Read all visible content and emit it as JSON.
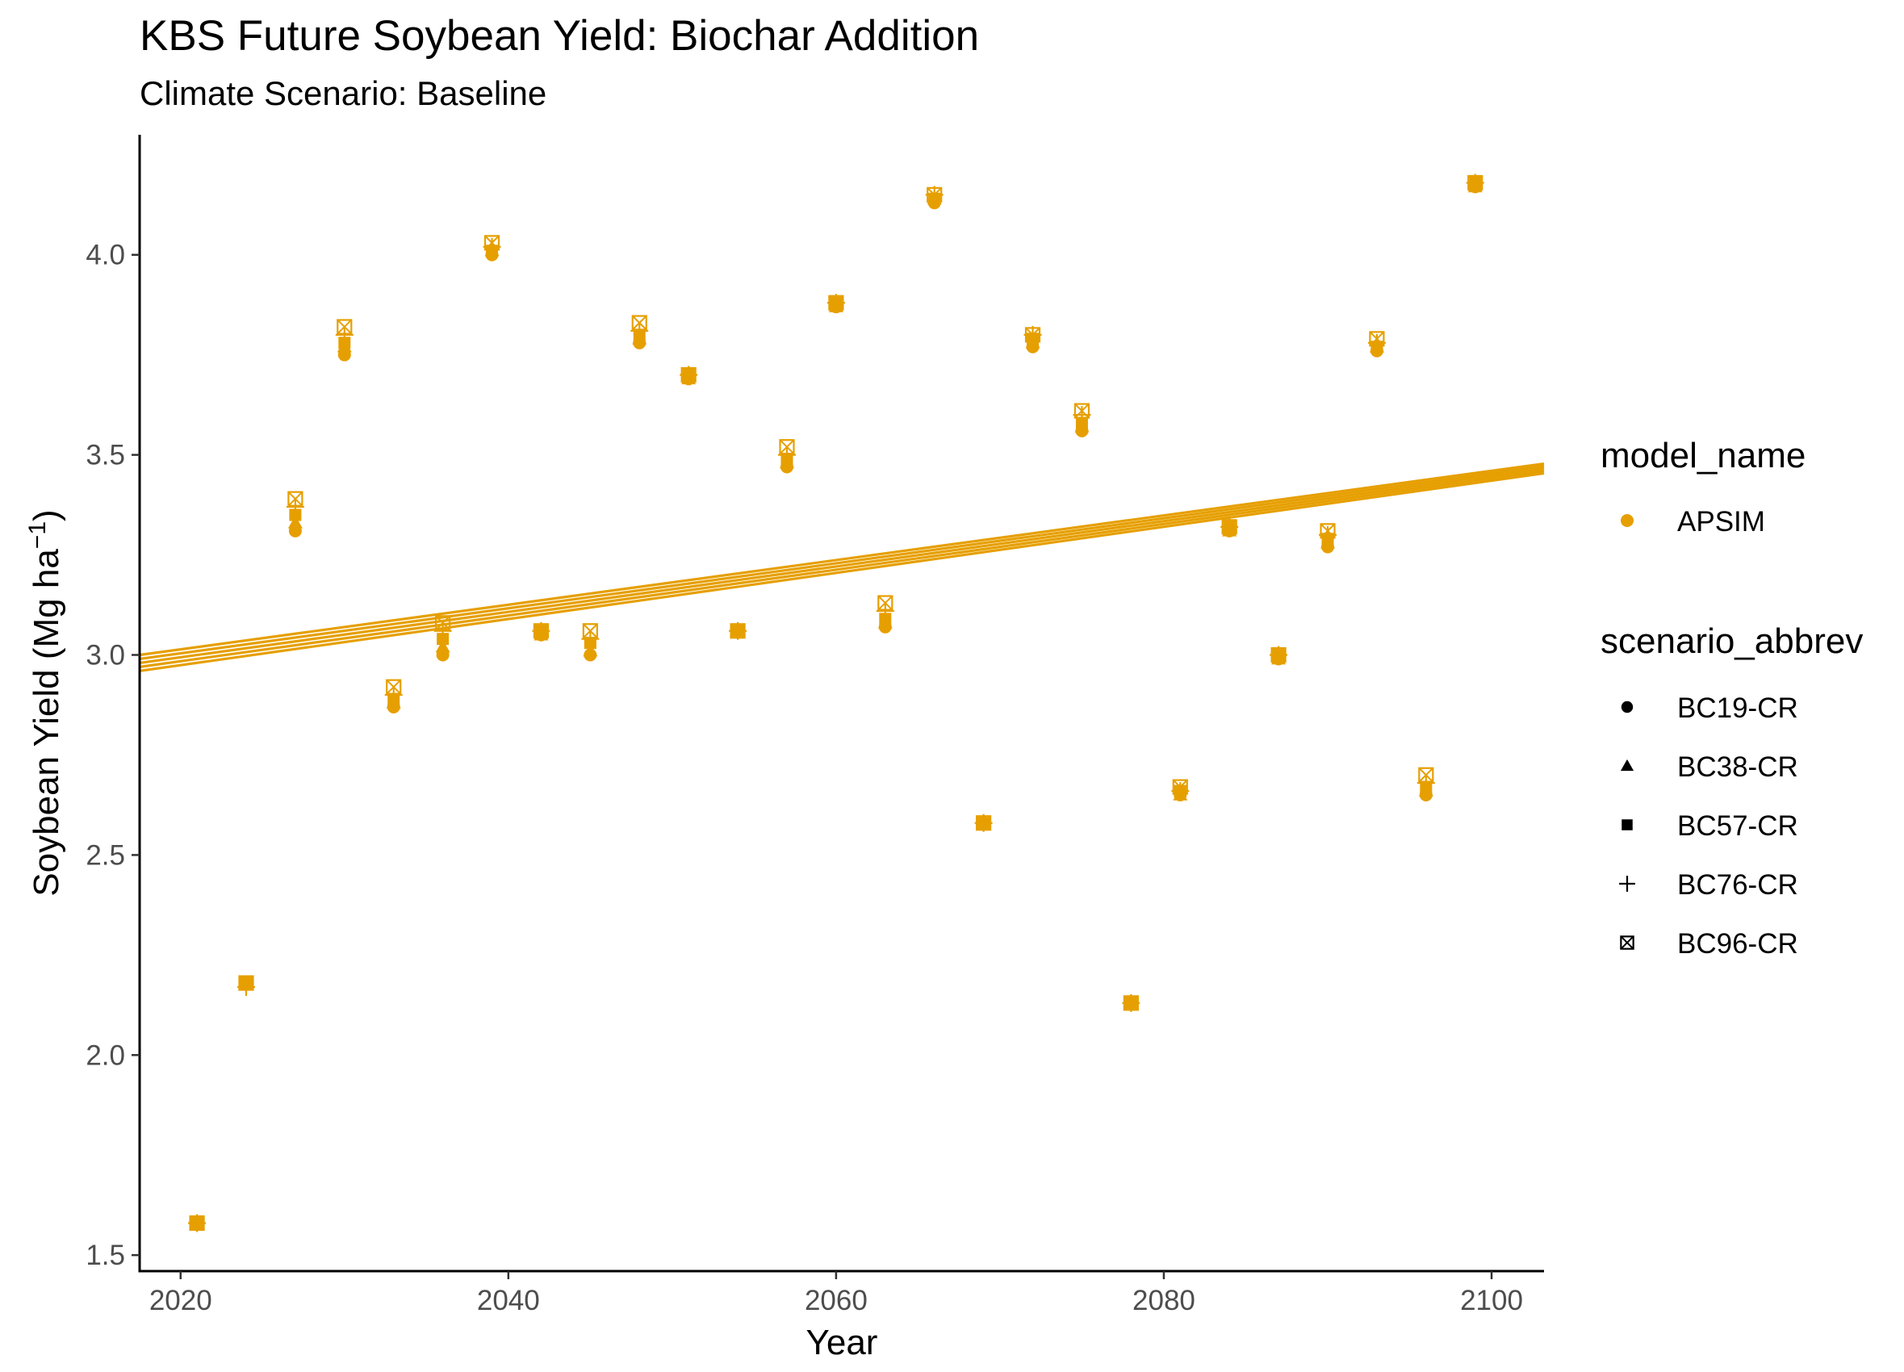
{
  "chart_data": {
    "type": "scatter",
    "title": "KBS Future Soybean Yield: Biochar Addition",
    "subtitle": "Climate Scenario: Baseline",
    "xlabel": "Year",
    "ylabel_main": "Soybean Yield (Mg ha",
    "ylabel_sup": "−1",
    "ylabel_end": ")",
    "xlim": [
      2017.5,
      2103.2
    ],
    "ylim": [
      1.46,
      4.3
    ],
    "x_ticks": [
      2020,
      2040,
      2060,
      2080,
      2100
    ],
    "y_ticks": [
      1.5,
      2.0,
      2.5,
      3.0,
      3.5,
      4.0
    ],
    "y_tick_labels": [
      "1.5",
      "2.0",
      "2.5",
      "3.0",
      "3.5",
      "4.0"
    ],
    "grid": false,
    "color": "#E69F00",
    "legend_position": "right",
    "legend_model": {
      "title": "model_name",
      "items": [
        {
          "label": "APSIM",
          "color": "#E69F00",
          "shape": "circle"
        }
      ]
    },
    "legend_scenario": {
      "title": "scenario_abbrev",
      "items": [
        {
          "label": "BC19-CR",
          "shape": "circle"
        },
        {
          "label": "BC38-CR",
          "shape": "triangle"
        },
        {
          "label": "BC57-CR",
          "shape": "square"
        },
        {
          "label": "BC76-CR",
          "shape": "plus"
        },
        {
          "label": "BC96-CR",
          "shape": "boxcross"
        }
      ]
    },
    "x": [
      2021,
      2024,
      2027,
      2030,
      2033,
      2036,
      2039,
      2042,
      2045,
      2048,
      2051,
      2054,
      2057,
      2060,
      2063,
      2066,
      2069,
      2072,
      2075,
      2078,
      2081,
      2084,
      2087,
      2090,
      2093,
      2096,
      2099
    ],
    "series": [
      {
        "name": "BC19-CR",
        "shape": "circle",
        "values": [
          1.58,
          2.18,
          3.31,
          3.75,
          2.87,
          3.0,
          4.0,
          3.05,
          3.0,
          3.78,
          3.69,
          3.06,
          3.47,
          3.87,
          3.07,
          4.13,
          2.58,
          3.77,
          3.56,
          2.13,
          2.65,
          3.31,
          2.99,
          3.27,
          3.76,
          2.65,
          4.17
        ],
        "trend": [
          2.96,
          3.454
        ]
      },
      {
        "name": "BC38-CR",
        "shape": "triangle",
        "values": [
          1.58,
          2.18,
          3.33,
          3.77,
          2.88,
          3.02,
          4.01,
          3.05,
          3.01,
          3.79,
          3.69,
          3.06,
          3.48,
          3.87,
          3.08,
          4.14,
          2.58,
          3.78,
          3.57,
          2.13,
          2.65,
          3.31,
          2.99,
          3.28,
          3.77,
          2.66,
          4.17
        ],
        "trend": [
          2.97,
          3.46
        ]
      },
      {
        "name": "BC57-CR",
        "shape": "square",
        "values": [
          1.58,
          2.18,
          3.35,
          3.78,
          2.89,
          3.04,
          4.01,
          3.06,
          3.03,
          3.8,
          3.7,
          3.06,
          3.49,
          3.88,
          3.09,
          4.14,
          2.58,
          3.79,
          3.58,
          2.13,
          2.66,
          3.32,
          3.0,
          3.29,
          3.77,
          2.67,
          4.18
        ],
        "trend": [
          2.98,
          3.466
        ]
      },
      {
        "name": "BC76-CR",
        "shape": "plus",
        "values": [
          1.58,
          2.17,
          3.37,
          3.8,
          2.9,
          3.06,
          4.02,
          3.06,
          3.04,
          3.81,
          3.7,
          3.06,
          3.5,
          3.88,
          3.11,
          4.15,
          2.58,
          3.8,
          3.6,
          2.13,
          2.66,
          3.32,
          3.0,
          3.3,
          3.78,
          2.68,
          4.18
        ],
        "trend": [
          2.99,
          3.472
        ]
      },
      {
        "name": "BC96-CR",
        "shape": "boxcross",
        "values": [
          1.58,
          2.18,
          3.39,
          3.82,
          2.92,
          3.08,
          4.03,
          3.06,
          3.06,
          3.83,
          3.7,
          3.06,
          3.52,
          3.88,
          3.13,
          4.15,
          2.58,
          3.8,
          3.61,
          2.13,
          2.67,
          3.32,
          3.0,
          3.31,
          3.79,
          2.7,
          4.18
        ],
        "trend": [
          3.0,
          3.478
        ]
      }
    ]
  }
}
